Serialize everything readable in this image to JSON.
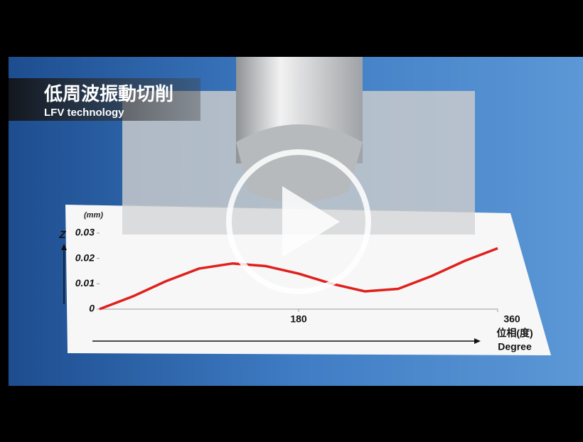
{
  "caption": {
    "title": "低周波振動切削",
    "subtitle": "LFV technology"
  },
  "chart_data": {
    "type": "line",
    "y_unit": "(mm)",
    "y_label": "Z",
    "x_label": "位相(度)",
    "x_label_2": "Degree",
    "x": [
      0,
      30,
      60,
      90,
      120,
      150,
      180,
      210,
      240,
      270,
      300,
      330,
      360
    ],
    "series": [
      {
        "color": "#e0201c",
        "values": [
          0,
          0.005,
          0.011,
          0.016,
          0.018,
          0.017,
          0.014,
          0.01,
          0.007,
          0.008,
          0.013,
          0.019,
          0.024
        ]
      }
    ],
    "xlim": [
      0,
      360
    ],
    "xticks": [
      180,
      360
    ],
    "ylim": [
      0,
      0.03
    ],
    "yticks": [
      0,
      0.01,
      0.02,
      0.03
    ]
  }
}
